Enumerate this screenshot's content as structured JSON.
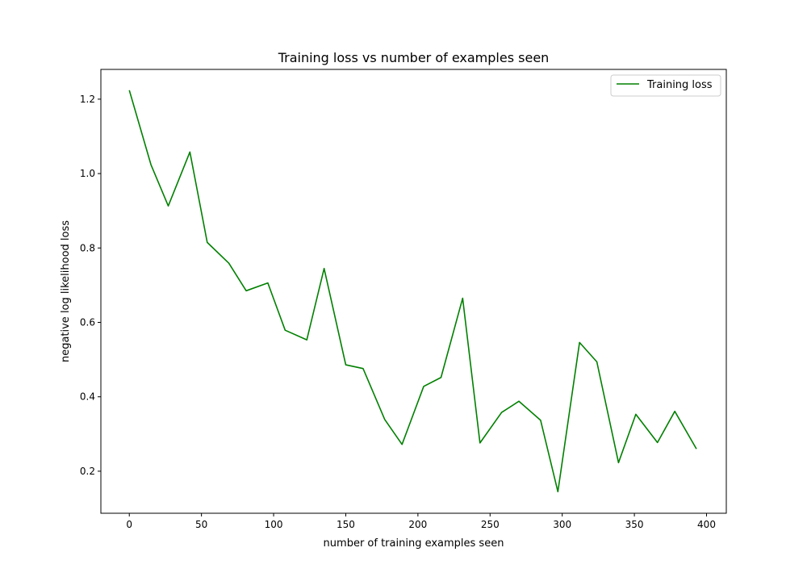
{
  "chart_data": {
    "type": "line",
    "title": "Training loss vs number of examples seen",
    "xlabel": "number of training examples seen",
    "ylabel": "negative log likelihood loss",
    "xlim": [
      -19.7,
      413.7
    ],
    "ylim": [
      0.087,
      1.28
    ],
    "xticks": [
      0,
      50,
      100,
      150,
      200,
      250,
      300,
      350,
      400
    ],
    "yticks": [
      0.2,
      0.4,
      0.6,
      0.8,
      1.0,
      1.2
    ],
    "ytick_labels": [
      "0.2",
      "0.4",
      "0.6",
      "0.8",
      "1.0",
      "1.2"
    ],
    "grid": false,
    "legend_position": "top-right",
    "series": [
      {
        "name": "Training loss",
        "color": "#008000",
        "x": [
          0,
          15,
          27,
          42,
          54,
          69,
          81,
          96,
          108,
          123,
          135,
          150,
          162,
          177,
          189,
          204,
          216,
          231,
          243,
          258,
          270,
          285,
          297,
          312,
          324,
          339,
          351,
          366,
          378,
          393
        ],
        "y": [
          1.224,
          1.024,
          0.913,
          1.058,
          0.815,
          0.759,
          0.685,
          0.706,
          0.579,
          0.553,
          0.745,
          0.486,
          0.476,
          0.339,
          0.272,
          0.428,
          0.452,
          0.665,
          0.276,
          0.358,
          0.388,
          0.337,
          0.145,
          0.546,
          0.494,
          0.223,
          0.353,
          0.277,
          0.361,
          0.26
        ]
      }
    ]
  }
}
